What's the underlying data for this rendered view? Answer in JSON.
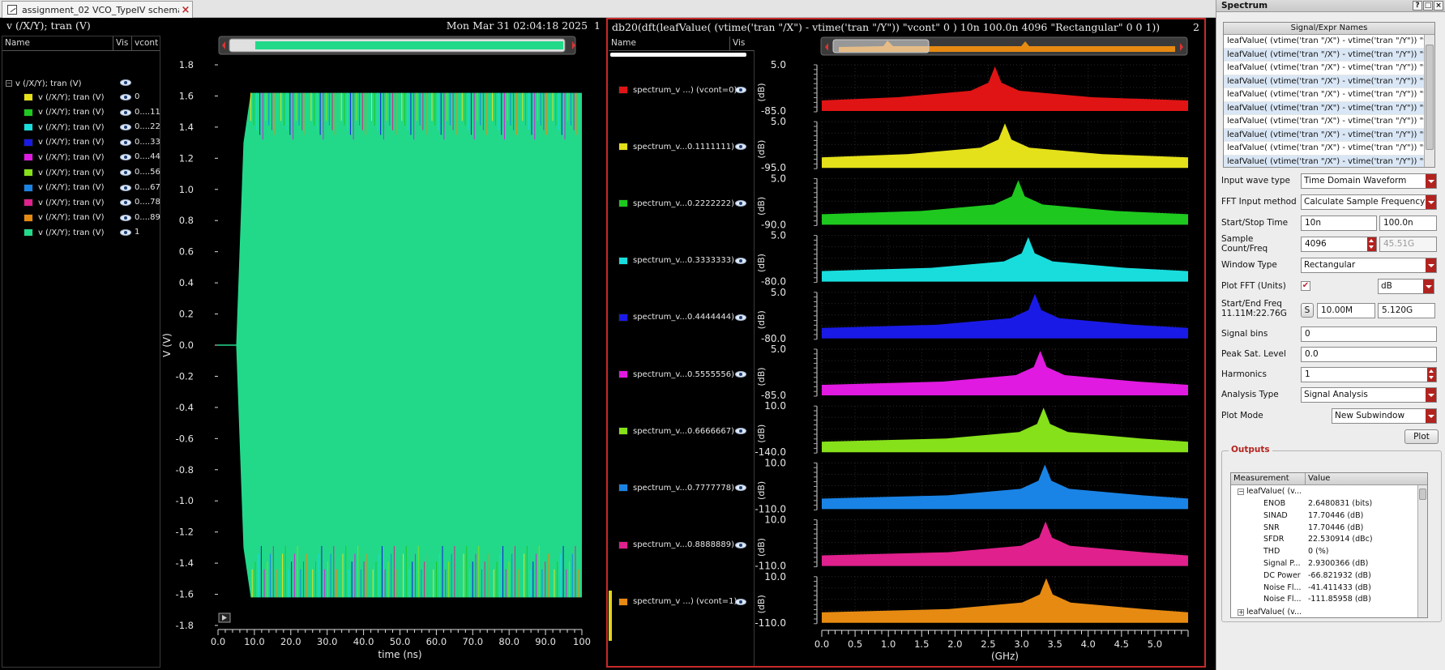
{
  "tab": {
    "title": "assignment_02 VCO_TypeIV schema..."
  },
  "sub1": {
    "title": "v (/X/Y); tran (V)",
    "timestamp": "Mon Mar 31 02:04:18 2025",
    "index": "1",
    "legend_headers": {
      "name": "Name",
      "vis": "Vis",
      "vcont": "vcont"
    },
    "group_label": "v (/X/Y); tran (V)",
    "traces": [
      {
        "label": "v (/X/Y); tran (V)",
        "vcont": "0",
        "color": "#e6e01a"
      },
      {
        "label": "v (/X/Y); tran (V)",
        "vcont": "0....11",
        "color": "#1ec81e"
      },
      {
        "label": "v (/X/Y); tran (V)",
        "vcont": "0....22",
        "color": "#19dddd"
      },
      {
        "label": "v (/X/Y); tran (V)",
        "vcont": "0....33",
        "color": "#1a1ae6"
      },
      {
        "label": "v (/X/Y); tran (V)",
        "vcont": "0....44",
        "color": "#e01ae0"
      },
      {
        "label": "v (/X/Y); tran (V)",
        "vcont": "0....56",
        "color": "#86e01a"
      },
      {
        "label": "v (/X/Y); tran (V)",
        "vcont": "0....67",
        "color": "#1a84e6"
      },
      {
        "label": "v (/X/Y); tran (V)",
        "vcont": "0....78",
        "color": "#e0208c"
      },
      {
        "label": "v (/X/Y); tran (V)",
        "vcont": "0....89",
        "color": "#e68a12"
      },
      {
        "label": "v (/X/Y); tran (V)",
        "vcont": "1",
        "color": "#22d98a"
      }
    ]
  },
  "sub2": {
    "title": "db20(dft(leafValue( (vtime('tran \"/X\") - vtime('tran \"/Y\")) \"vcont\" 0 )  10n 100.0n 4096 \"Rectangular\" 0 0 1))",
    "index": "2",
    "legend_headers": {
      "name": "Name",
      "vis": "Vis"
    },
    "signals": [
      {
        "label": "spectrum_v ...) (vcont=0)",
        "color": "#e01414"
      },
      {
        "label": "spectrum_v...0.1111111)",
        "color": "#e4e01a"
      },
      {
        "label": "spectrum_v...0.2222222)",
        "color": "#1ec81e"
      },
      {
        "label": "spectrum_v...0.3333333)",
        "color": "#19dddd"
      },
      {
        "label": "spectrum_v...0.4444444)",
        "color": "#1a1ae6"
      },
      {
        "label": "spectrum_v...0.5555556)",
        "color": "#e01ae0"
      },
      {
        "label": "spectrum_v...0.6666667)",
        "color": "#86e01a"
      },
      {
        "label": "spectrum_v...0.7777778)",
        "color": "#1a84e6"
      },
      {
        "label": "spectrum_v...0.8888889)",
        "color": "#e0208c"
      },
      {
        "label": "spectrum_v ...) (vcont=1)",
        "color": "#e68a12"
      }
    ]
  },
  "chart_data": [
    {
      "type": "line",
      "title": "v (/X/Y); tran (V)",
      "xlabel": "time (ns)",
      "ylabel": "V (V)",
      "xlim": [
        0,
        100
      ],
      "ylim": [
        -1.8,
        1.8
      ],
      "x_ticks": [
        "0.0",
        "10.0",
        "20.0",
        "30.0",
        "40.0",
        "50.0",
        "60.0",
        "70.0",
        "80.0",
        "90.0",
        "100"
      ],
      "y_ticks": [
        "1.8",
        "1.6",
        "1.4",
        "1.2",
        "1.0",
        "0.8",
        "0.6",
        "0.4",
        "0.2",
        "0.0",
        "-0.2",
        "-0.4",
        "-0.6",
        "-0.8",
        "-1.0",
        "-1.2",
        "-1.4",
        "-1.6",
        "-1.8"
      ],
      "series": [
        {
          "name": "v (/X/Y); tran (V) vcont=0",
          "description_values": {
            "startup_ns": 5,
            "amplitude_high": 1.62,
            "amplitude_low": -1.62
          }
        }
      ]
    },
    {
      "type": "area",
      "title": "db20(dft(...))",
      "xlabel": "(GHz)",
      "xlim": [
        0,
        5.5
      ],
      "x_ticks": [
        "0.0",
        "0.5",
        "1.0",
        "1.5",
        "2.0",
        "2.5",
        "3.0",
        "3.5",
        "4.0",
        "4.5",
        "5.0"
      ],
      "strip_ylabel": "(dB)",
      "strips": [
        {
          "top": "5.0",
          "bottom": "-85.0",
          "peak_ghz": 2.6,
          "color": "#e01414"
        },
        {
          "top": "5.0",
          "bottom": "-95.0",
          "peak_ghz": 2.75,
          "color": "#e4e01a"
        },
        {
          "top": "5.0",
          "bottom": "-90.0",
          "peak_ghz": 2.95,
          "color": "#1ec81e"
        },
        {
          "top": "5.0",
          "bottom": "-80.0",
          "peak_ghz": 3.1,
          "color": "#19dddd"
        },
        {
          "top": "5.0",
          "bottom": "-80.0",
          "peak_ghz": 3.2,
          "color": "#1a1ae6"
        },
        {
          "top": "5.0",
          "bottom": "-85.0",
          "peak_ghz": 3.28,
          "color": "#e01ae0"
        },
        {
          "top": "10.0",
          "bottom": "-140.0",
          "peak_ghz": 3.33,
          "color": "#86e01a"
        },
        {
          "top": "10.0",
          "bottom": "-110.0",
          "peak_ghz": 3.35,
          "color": "#1a84e6"
        },
        {
          "top": "10.0",
          "bottom": "-110.0",
          "peak_ghz": 3.36,
          "color": "#e0208c"
        },
        {
          "top": "10.0",
          "bottom": "-110.0",
          "peak_ghz": 3.37,
          "color": "#e68a12"
        }
      ]
    }
  ],
  "panel": {
    "title": "Spectrum",
    "win_btns": [
      "?",
      "□",
      "×"
    ],
    "sig_list_header": "Signal/Expr Names",
    "sig_list": [
      "leafValue( (vtime('tran \"/X\") - vtime('tran \"/Y\")) \"vc...",
      "leafValue( (vtime('tran \"/X\") - vtime('tran \"/Y\")) \"vc...",
      "leafValue( (vtime('tran \"/X\") - vtime('tran \"/Y\")) \"vc...",
      "leafValue( (vtime('tran \"/X\") - vtime('tran \"/Y\")) \"vc...",
      "leafValue( (vtime('tran \"/X\") - vtime('tran \"/Y\")) \"vc...",
      "leafValue( (vtime('tran \"/X\") - vtime('tran \"/Y\")) \"vc...",
      "leafValue( (vtime('tran \"/X\") - vtime('tran \"/Y\")) \"vc...",
      "leafValue( (vtime('tran \"/X\") - vtime('tran \"/Y\")) \"vc...",
      "leafValue( (vtime('tran \"/X\") - vtime('tran \"/Y\")) \"vc...",
      "leafValue( (vtime('tran \"/X\") - vtime('tran \"/Y\")) \"vc..."
    ],
    "input_wave_type": {
      "label": "Input wave type",
      "value": "Time Domain Waveform"
    },
    "fft_input_method": {
      "label": "FFT Input method",
      "value": "Calculate Sample Frequency"
    },
    "start_stop": {
      "label": "Start/Stop Time",
      "start": "10n",
      "stop": "100.0n"
    },
    "sample_count": {
      "label": "Sample Count/Freq",
      "count": "4096",
      "freq": "45.51G"
    },
    "window_type": {
      "label": "Window Type",
      "value": "Rectangular"
    },
    "plot_fft": {
      "label": "Plot FFT (Units)",
      "checked": "✔",
      "units": "dB"
    },
    "start_end_freq": {
      "label": "Start/End Freq",
      "sublabel": "11.11M:22.76G",
      "s_btn": "S",
      "start": "10.00M",
      "end": "5.120G"
    },
    "signal_bins": {
      "label": "Signal bins",
      "value": "0"
    },
    "peak_sat": {
      "label": "Peak Sat. Level",
      "value": "0.0"
    },
    "harmonics": {
      "label": "Harmonics",
      "value": "1"
    },
    "analysis_type": {
      "label": "Analysis Type",
      "value": "Signal Analysis"
    },
    "plot_mode": {
      "label": "Plot Mode",
      "value": "New Subwindow"
    },
    "plot_button": "Plot",
    "outputs": {
      "title": "Outputs",
      "headers": {
        "measurement": "Measurement",
        "value": "Value"
      },
      "group1": "leafValue( (v...",
      "rows": [
        {
          "name": "ENOB",
          "value": "2.6480831 (bits)"
        },
        {
          "name": "SINAD",
          "value": "17.70446 (dB)"
        },
        {
          "name": "SNR",
          "value": "17.70446 (dB)"
        },
        {
          "name": "SFDR",
          "value": "22.530914 (dBc)"
        },
        {
          "name": "THD",
          "value": "0 (%)"
        },
        {
          "name": "Signal P...",
          "value": "2.9300366 (dB)"
        },
        {
          "name": "DC Power",
          "value": "-66.821932 (dB)"
        },
        {
          "name": "Noise Fl...",
          "value": "-41.411433 (dB)"
        },
        {
          "name": "Noise Fl...",
          "value": "-111.85958 (dB)"
        }
      ],
      "group2": "leafValue( (v..."
    }
  }
}
